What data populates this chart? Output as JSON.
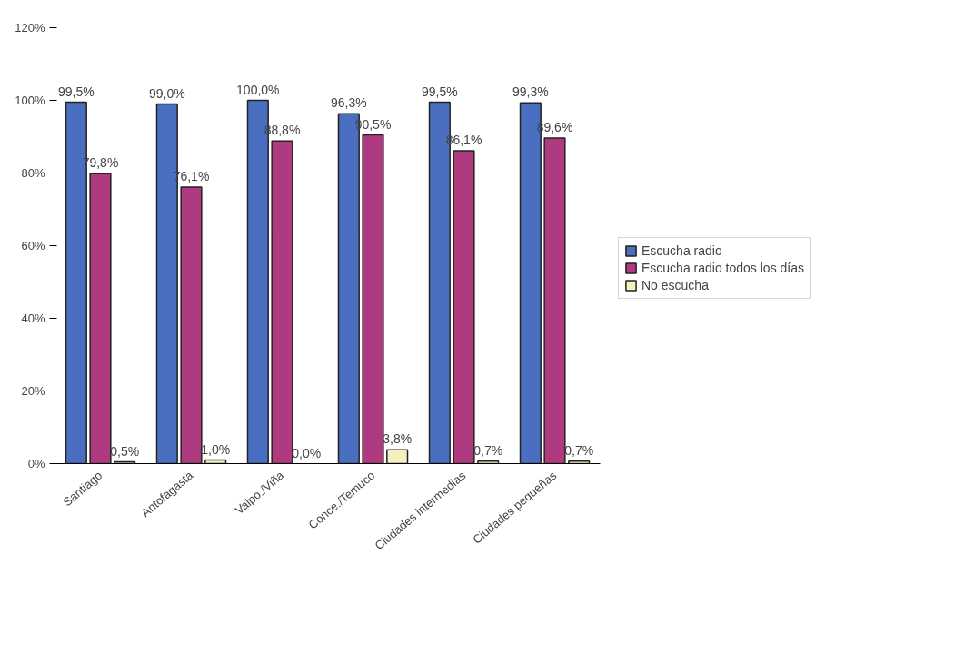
{
  "chart_data": {
    "type": "bar",
    "categories": [
      "Santiago",
      "Antofagasta",
      "Valpo./Viña",
      "Conce./Temuco",
      "Ciudades intermedias",
      "Ciudades pequeñas"
    ],
    "series": [
      {
        "name": "Escucha radio",
        "color": "#4a6fc0",
        "values": [
          99.5,
          99.0,
          100.0,
          96.3,
          99.5,
          99.3
        ],
        "value_labels": [
          "99,5%",
          "99,0%",
          "100,0%",
          "96,3%",
          "99,5%",
          "99,3%"
        ]
      },
      {
        "name": "Escucha radio todos los días",
        "color": "#b03a80",
        "values": [
          79.8,
          76.1,
          88.8,
          90.5,
          86.1,
          89.6
        ],
        "value_labels": [
          "79,8%",
          "76,1%",
          "88,8%",
          "90,5%",
          "86,1%",
          "89,6%"
        ]
      },
      {
        "name": "No escucha",
        "color": "#f5f0c0",
        "values": [
          0.5,
          1.0,
          0.0,
          3.8,
          0.7,
          0.7
        ],
        "value_labels": [
          "0,5%",
          "1,0%",
          "0,0%",
          "3,8%",
          "0,7%",
          "0,7%"
        ]
      }
    ],
    "ylim": [
      0,
      120
    ],
    "yticks": [
      {
        "value": 0,
        "label": "0%"
      },
      {
        "value": 20,
        "label": "20%"
      },
      {
        "value": 40,
        "label": "40%"
      },
      {
        "value": 60,
        "label": "60%"
      },
      {
        "value": 80,
        "label": "80%"
      },
      {
        "value": 100,
        "label": "100%"
      },
      {
        "value": 120,
        "label": "120%"
      }
    ],
    "grid": false,
    "legend": "right"
  }
}
